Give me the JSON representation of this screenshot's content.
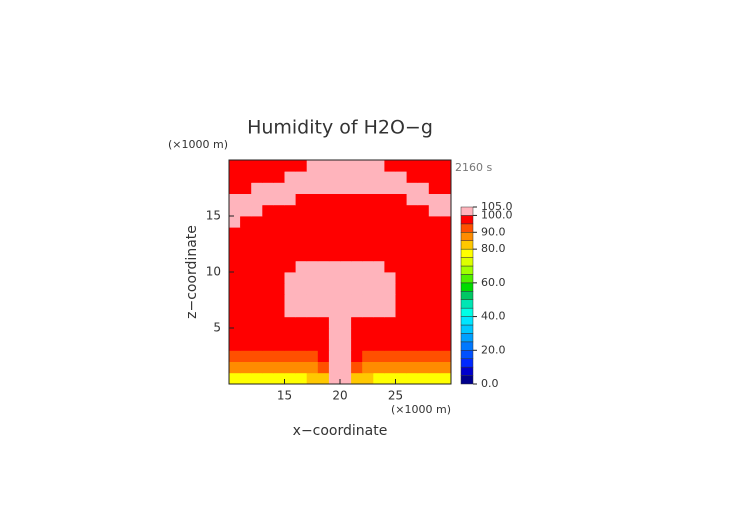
{
  "chart_data": {
    "type": "heatmap",
    "title": "Humidity of H2O−g",
    "time_label": "2160 s",
    "xlabel": "x−coordinate",
    "ylabel": "z−coordinate",
    "x_unit": "(×1000 m)",
    "y_unit": "(×1000 m)",
    "xlim": [
      10,
      30
    ],
    "ylim": [
      0,
      20
    ],
    "xticks": [
      15,
      20,
      25
    ],
    "yticks": [
      5,
      10,
      15
    ],
    "x": [
      10.5,
      11.5,
      12.5,
      13.5,
      14.5,
      15.5,
      16.5,
      17.5,
      18.5,
      19.5,
      20.5,
      21.5,
      22.5,
      23.5,
      24.5,
      25.5,
      26.5,
      27.5,
      28.5,
      29.5
    ],
    "y": [
      0.5,
      1.5,
      2.5,
      3.5,
      4.5,
      5.5,
      6.5,
      7.5,
      8.5,
      9.5,
      10.5,
      11.5,
      12.5,
      13.5,
      14.5,
      15.5,
      16.5,
      17.5,
      18.5,
      19.5
    ],
    "z": [
      [
        78,
        78,
        78,
        78,
        78,
        78,
        78,
        80,
        83,
        101,
        101,
        83,
        80,
        78,
        78,
        78,
        78,
        78,
        78,
        78
      ],
      [
        86,
        86,
        86,
        86,
        86,
        86,
        86,
        88,
        92,
        101,
        101,
        92,
        88,
        86,
        86,
        86,
        86,
        86,
        86,
        86
      ],
      [
        93,
        93,
        93,
        93,
        93,
        93,
        93,
        94,
        96,
        101,
        101,
        96,
        94,
        93,
        93,
        93,
        93,
        93,
        93,
        93
      ],
      [
        97,
        97,
        97,
        97,
        97,
        97,
        97,
        97,
        97,
        101,
        101,
        97,
        97,
        97,
        97,
        97,
        97,
        97,
        97,
        97
      ],
      [
        97,
        97,
        97,
        97,
        97,
        97,
        97,
        97,
        97,
        101,
        101,
        97,
        97,
        97,
        97,
        97,
        97,
        97,
        97,
        97
      ],
      [
        97,
        97,
        97,
        97,
        97,
        97,
        97,
        97,
        97,
        101,
        101,
        97,
        97,
        97,
        97,
        97,
        97,
        97,
        97,
        97
      ],
      [
        97,
        97,
        97,
        97,
        97,
        101,
        101,
        101,
        101,
        101,
        101,
        101,
        101,
        101,
        101,
        97,
        97,
        97,
        97,
        97
      ],
      [
        97,
        97,
        97,
        97,
        97,
        101,
        101,
        101,
        101,
        101,
        101,
        101,
        101,
        101,
        101,
        97,
        97,
        97,
        97,
        97
      ],
      [
        97,
        97,
        97,
        97,
        97,
        101,
        101,
        101,
        101,
        101,
        101,
        101,
        101,
        101,
        101,
        97,
        97,
        97,
        97,
        97
      ],
      [
        97,
        97,
        97,
        97,
        97,
        101,
        101,
        101,
        101,
        101,
        101,
        101,
        101,
        101,
        101,
        97,
        97,
        97,
        97,
        97
      ],
      [
        97,
        97,
        97,
        97,
        97,
        97,
        101,
        101,
        101,
        101,
        101,
        101,
        101,
        101,
        97,
        97,
        97,
        97,
        97,
        97
      ],
      [
        97,
        97,
        97,
        97,
        97,
        97,
        97,
        97,
        97,
        97,
        97,
        97,
        97,
        97,
        97,
        97,
        97,
        97,
        97,
        97
      ],
      [
        97,
        97,
        97,
        97,
        97,
        97,
        97,
        97,
        97,
        97,
        97,
        97,
        97,
        97,
        97,
        97,
        97,
        97,
        97,
        97
      ],
      [
        97,
        97,
        97,
        97,
        97,
        97,
        97,
        97,
        97,
        97,
        97,
        97,
        97,
        97,
        97,
        97,
        97,
        97,
        97,
        97
      ],
      [
        101,
        97,
        97,
        97,
        97,
        97,
        97,
        97,
        97,
        97,
        97,
        97,
        97,
        97,
        97,
        97,
        97,
        97,
        97,
        97
      ],
      [
        101,
        101,
        101,
        97,
        97,
        97,
        97,
        97,
        97,
        97,
        97,
        97,
        97,
        97,
        97,
        97,
        97,
        97,
        101,
        101
      ],
      [
        101,
        101,
        101,
        101,
        101,
        101,
        97,
        97,
        97,
        97,
        97,
        97,
        97,
        97,
        97,
        97,
        101,
        101,
        101,
        101
      ],
      [
        97,
        97,
        101,
        101,
        101,
        101,
        101,
        101,
        101,
        101,
        101,
        101,
        101,
        101,
        101,
        101,
        101,
        101,
        97,
        97
      ],
      [
        97,
        97,
        97,
        97,
        97,
        101,
        101,
        101,
        101,
        101,
        101,
        101,
        101,
        101,
        101,
        101,
        97,
        97,
        97,
        97
      ],
      [
        97,
        97,
        97,
        97,
        97,
        97,
        97,
        101,
        101,
        101,
        101,
        101,
        101,
        101,
        97,
        97,
        97,
        97,
        97,
        97
      ]
    ],
    "colorbar": {
      "levels": [
        0,
        5,
        10,
        15,
        20,
        25,
        30,
        35,
        40,
        45,
        50,
        55,
        60,
        65,
        70,
        75,
        80,
        85,
        90,
        95,
        100,
        105
      ],
      "colors": [
        "#00008c",
        "#0000cd",
        "#0028ff",
        "#0050ff",
        "#0078ff",
        "#00a0ff",
        "#00c8ff",
        "#00e6ff",
        "#00ffe6",
        "#00e6b4",
        "#00c864",
        "#00dc00",
        "#50f000",
        "#a0ff00",
        "#dcff00",
        "#ffff00",
        "#ffc800",
        "#ff8c00",
        "#ff5000",
        "#ff0000",
        "#ffb4bc"
      ],
      "ticks": [
        {
          "value": 0,
          "label": "0.0"
        },
        {
          "value": 20,
          "label": "20.0"
        },
        {
          "value": 40,
          "label": "40.0"
        },
        {
          "value": 60,
          "label": "60.0"
        },
        {
          "value": 80,
          "label": "80.0"
        },
        {
          "value": 90,
          "label": "90.0"
        },
        {
          "value": 100,
          "label": "100.0"
        },
        {
          "value": 105,
          "label": "105.0"
        }
      ]
    }
  }
}
